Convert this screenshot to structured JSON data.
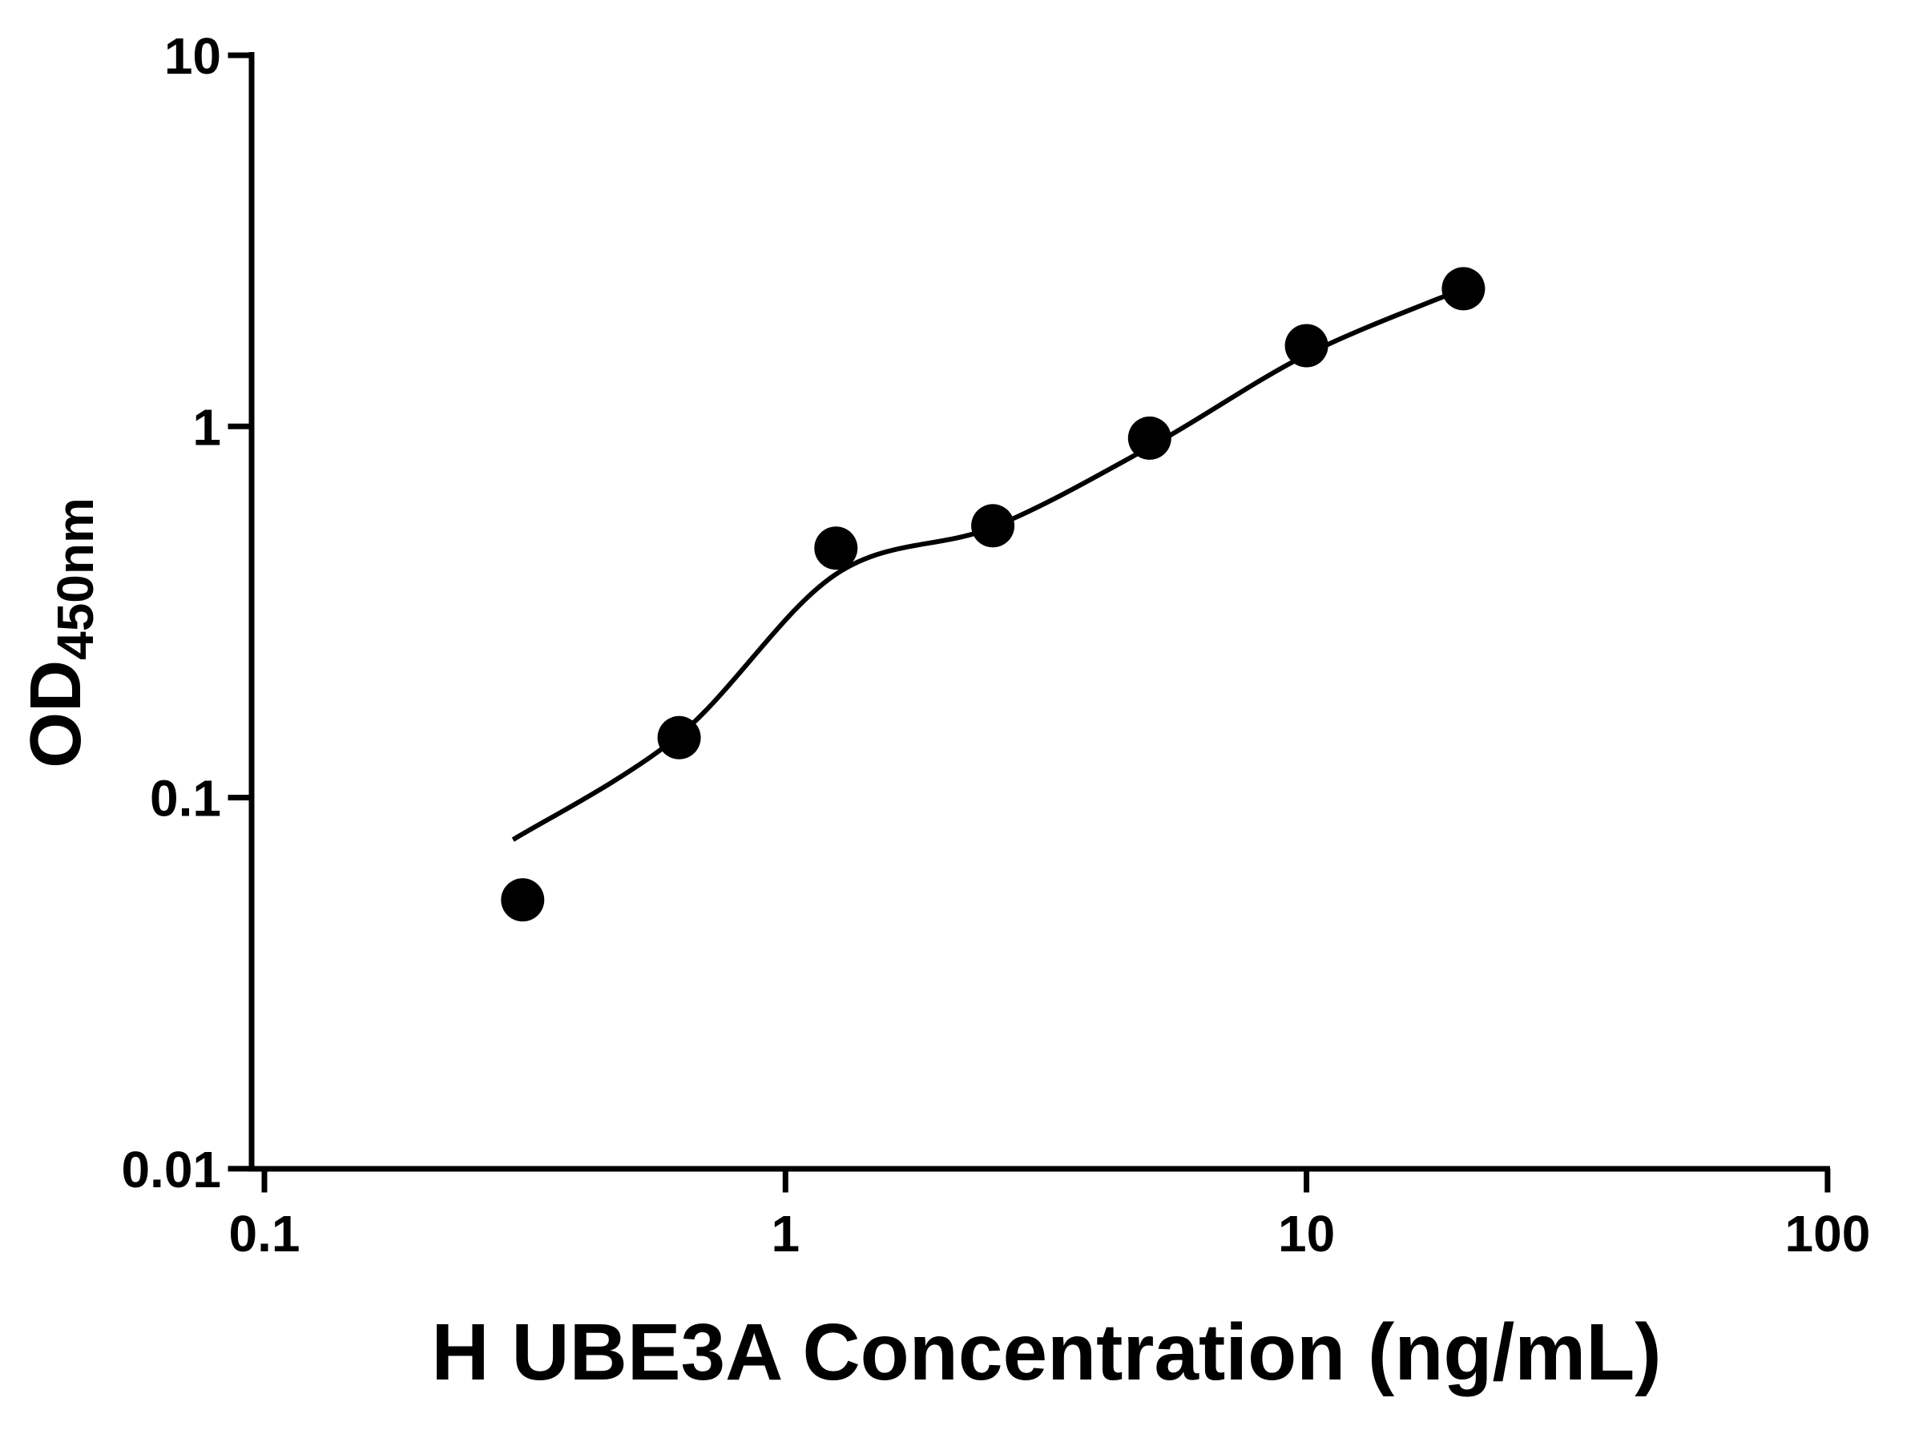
{
  "chart_data": {
    "type": "scatter",
    "title": "",
    "xlabel": "H UBE3A Concentration (ng/mL)",
    "ylabel_main": "OD",
    "ylabel_sub": "450nm",
    "x_scale": "log",
    "y_scale": "log",
    "xlim": [
      0.1,
      100
    ],
    "ylim": [
      0.01,
      10
    ],
    "x_ticks": [
      0.1,
      1,
      10,
      100
    ],
    "x_tick_labels": [
      "0.1",
      "1",
      "10",
      "100"
    ],
    "y_ticks": [
      0.01,
      0.1,
      1,
      10
    ],
    "y_tick_labels": [
      "0.01",
      "0.1",
      "1",
      "10"
    ],
    "grid": false,
    "legend": false,
    "series": [
      {
        "name": "standard-curve-points",
        "marker": "circle",
        "color": "#000000",
        "x": [
          0.313,
          0.625,
          1.25,
          2.5,
          5,
          10,
          20
        ],
        "y": [
          0.053,
          0.145,
          0.47,
          0.54,
          0.93,
          1.65,
          2.35
        ]
      }
    ],
    "fit_curve": {
      "name": "four-parameter-fit",
      "color": "#000000",
      "x": [
        0.3,
        0.625,
        1.25,
        2.5,
        5,
        10,
        20
      ],
      "y": [
        0.077,
        0.147,
        0.4,
        0.535,
        0.88,
        1.56,
        2.35
      ]
    },
    "colors": {
      "axis": "#000000",
      "marker": "#000000",
      "curve": "#000000",
      "background": "#ffffff"
    }
  }
}
